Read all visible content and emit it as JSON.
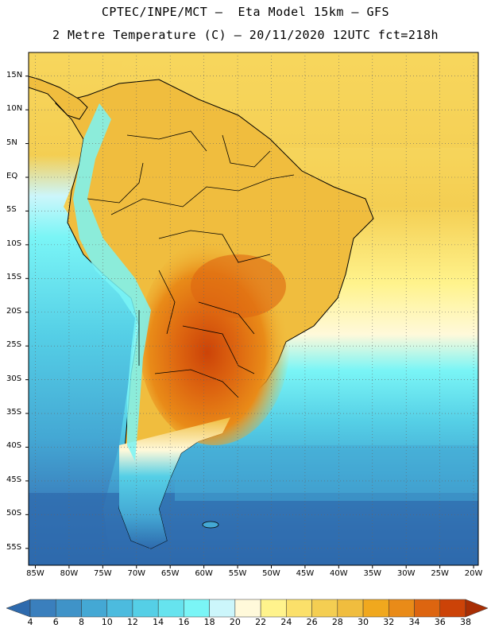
{
  "header": {
    "line1": "CPTEC/INPE/MCT –  Eta Model 15km – GFS",
    "line2": "2 Metre Temperature (C) – 20/11/2020 12UTC fct=218h"
  },
  "map": {
    "lat_labels": [
      "15N",
      "10N",
      "5N",
      "EQ",
      "5S",
      "10S",
      "15S",
      "20S",
      "25S",
      "30S",
      "35S",
      "40S",
      "45S",
      "50S",
      "55S"
    ],
    "lon_labels": [
      "85W",
      "80W",
      "75W",
      "70W",
      "65W",
      "60W",
      "55W",
      "50W",
      "45W",
      "40W",
      "35W",
      "30W",
      "25W",
      "20W"
    ],
    "lat_values": [
      15,
      10,
      5,
      0,
      -5,
      -10,
      -15,
      -20,
      -25,
      -30,
      -35,
      -40,
      -45,
      -50,
      -55
    ],
    "lon_values": [
      -85,
      -80,
      -75,
      -70,
      -65,
      -60,
      -55,
      -50,
      -45,
      -40,
      -35,
      -30,
      -25,
      -20
    ]
  },
  "colorbar": {
    "labels": [
      "4",
      "6",
      "8",
      "10",
      "12",
      "14",
      "16",
      "18",
      "20",
      "22",
      "24",
      "26",
      "28",
      "30",
      "32",
      "34",
      "36",
      "38"
    ],
    "colors": [
      "#2e6aad",
      "#3a7fbd",
      "#3f93c8",
      "#44a8d4",
      "#4cbbde",
      "#55cfe6",
      "#66e3ee",
      "#7af5f6",
      "#ccf6fb",
      "#fff9da",
      "#fff38c",
      "#fbe06a",
      "#f4ce52",
      "#f0bd3e",
      "#f0a81e",
      "#e98b18",
      "#dd6510",
      "#cc4308",
      "#a82e04"
    ],
    "unit": "C"
  },
  "colors": {
    "ocean_deep": "#2e6aad",
    "ocean_mid": "#44a8d4",
    "ocean_warm": "#fff38c",
    "land_warm": "#f0bd3e",
    "land_hot": "#dd6510",
    "andes_cold": "#55cfe6"
  }
}
